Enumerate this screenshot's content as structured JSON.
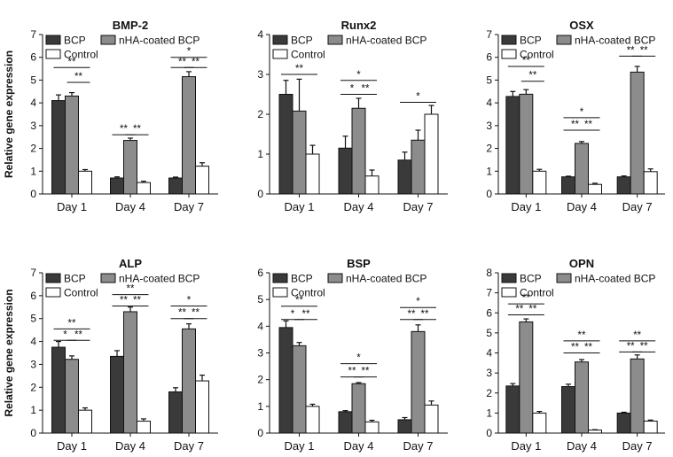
{
  "legend_labels": [
    "BCP",
    "nHA-coated BCP",
    "Control"
  ],
  "series_colors": [
    "#3a3a3a",
    "#8c8c8c",
    "#ffffff"
  ],
  "chart_data": [
    {
      "type": "bar",
      "title": "BMP-2",
      "ylabel": "Relative gene expression",
      "categories": [
        "Day 1",
        "Day 4",
        "Day 7"
      ],
      "ylim": [
        0,
        7
      ],
      "yticks": [
        0,
        1,
        2,
        3,
        4,
        5,
        6,
        7
      ],
      "series": [
        {
          "name": "BCP",
          "values": [
            4.1,
            0.7,
            0.7
          ],
          "errors": [
            0.25,
            0.05,
            0.04
          ]
        },
        {
          "name": "nHA-coated BCP",
          "values": [
            4.3,
            2.35,
            5.15
          ],
          "errors": [
            0.15,
            0.1,
            0.22
          ]
        },
        {
          "name": "Control",
          "values": [
            1.0,
            0.5,
            1.22
          ],
          "errors": [
            0.07,
            0.06,
            0.15
          ]
        }
      ],
      "significance": [
        {
          "group": 0,
          "from": 0,
          "to": 2,
          "y": 5.55,
          "label": "**"
        },
        {
          "group": 0,
          "from": 1,
          "to": 2,
          "y": 4.9,
          "label": "**"
        },
        {
          "group": 1,
          "from": 0,
          "to": 1,
          "y": 2.6,
          "label": "**"
        },
        {
          "group": 1,
          "from": 1,
          "to": 2,
          "y": 2.6,
          "label": "**"
        },
        {
          "group": 2,
          "from": 0,
          "to": 2,
          "y": 6.0,
          "label": "*"
        },
        {
          "group": 2,
          "from": 0,
          "to": 1,
          "y": 5.55,
          "label": "**"
        },
        {
          "group": 2,
          "from": 1,
          "to": 2,
          "y": 5.55,
          "label": "**"
        }
      ]
    },
    {
      "type": "bar",
      "title": "Runx2",
      "ylabel": "",
      "categories": [
        "Day 1",
        "Day 4",
        "Day 7"
      ],
      "ylim": [
        0,
        4
      ],
      "yticks": [
        0,
        1,
        2,
        3,
        4
      ],
      "series": [
        {
          "name": "BCP",
          "values": [
            2.5,
            1.15,
            0.85
          ],
          "errors": [
            0.35,
            0.3,
            0.2
          ]
        },
        {
          "name": "nHA-coated BCP",
          "values": [
            2.08,
            2.15,
            1.35
          ],
          "errors": [
            0.8,
            0.25,
            0.25
          ]
        },
        {
          "name": "Control",
          "values": [
            1.0,
            0.45,
            2.0
          ],
          "errors": [
            0.22,
            0.15,
            0.22
          ]
        }
      ],
      "significance": [
        {
          "group": 0,
          "from": 0,
          "to": 2,
          "y": 3.0,
          "label": "**"
        },
        {
          "group": 1,
          "from": 0,
          "to": 2,
          "y": 2.85,
          "label": "*"
        },
        {
          "group": 1,
          "from": 0,
          "to": 1,
          "y": 2.5,
          "label": "*"
        },
        {
          "group": 1,
          "from": 1,
          "to": 2,
          "y": 2.5,
          "label": "**"
        },
        {
          "group": 2,
          "from": 0,
          "to": 2,
          "y": 2.3,
          "label": "*"
        }
      ]
    },
    {
      "type": "bar",
      "title": "OSX",
      "ylabel": "",
      "categories": [
        "Day 1",
        "Day 4",
        "Day 7"
      ],
      "ylim": [
        0,
        7
      ],
      "yticks": [
        0,
        1,
        2,
        3,
        4,
        5,
        6,
        7
      ],
      "series": [
        {
          "name": "BCP",
          "values": [
            4.28,
            0.75,
            0.75
          ],
          "errors": [
            0.22,
            0.03,
            0.04
          ]
        },
        {
          "name": "nHA-coated BCP",
          "values": [
            4.38,
            2.22,
            5.35
          ],
          "errors": [
            0.2,
            0.08,
            0.25
          ]
        },
        {
          "name": "Control",
          "values": [
            1.0,
            0.42,
            0.98
          ],
          "errors": [
            0.08,
            0.05,
            0.12
          ]
        }
      ],
      "significance": [
        {
          "group": 0,
          "from": 0,
          "to": 2,
          "y": 5.6,
          "label": "**"
        },
        {
          "group": 0,
          "from": 1,
          "to": 2,
          "y": 4.95,
          "label": "**"
        },
        {
          "group": 1,
          "from": 0,
          "to": 2,
          "y": 3.35,
          "label": "*"
        },
        {
          "group": 1,
          "from": 0,
          "to": 1,
          "y": 2.8,
          "label": "**"
        },
        {
          "group": 1,
          "from": 1,
          "to": 2,
          "y": 2.8,
          "label": "**"
        },
        {
          "group": 2,
          "from": 0,
          "to": 1,
          "y": 6.05,
          "label": "**"
        },
        {
          "group": 2,
          "from": 1,
          "to": 2,
          "y": 6.05,
          "label": "**"
        }
      ]
    },
    {
      "type": "bar",
      "title": "ALP",
      "ylabel": "Relative gene expression",
      "categories": [
        "Day 1",
        "Day 4",
        "Day 7"
      ],
      "ylim": [
        0,
        7
      ],
      "yticks": [
        0,
        1,
        2,
        3,
        4,
        5,
        6,
        7
      ],
      "series": [
        {
          "name": "BCP",
          "values": [
            3.75,
            3.35,
            1.8
          ],
          "errors": [
            0.25,
            0.25,
            0.18
          ]
        },
        {
          "name": "nHA-coated BCP",
          "values": [
            3.22,
            5.3,
            4.55
          ],
          "errors": [
            0.15,
            0.2,
            0.22
          ]
        },
        {
          "name": "Control",
          "values": [
            1.0,
            0.52,
            2.28
          ],
          "errors": [
            0.1,
            0.1,
            0.25
          ]
        }
      ],
      "significance": [
        {
          "group": 0,
          "from": 0,
          "to": 2,
          "y": 4.55,
          "label": "**"
        },
        {
          "group": 0,
          "from": 0,
          "to": 1,
          "y": 4.05,
          "label": "*"
        },
        {
          "group": 0,
          "from": 1,
          "to": 2,
          "y": 4.05,
          "label": "**"
        },
        {
          "group": 1,
          "from": 0,
          "to": 2,
          "y": 6.05,
          "label": "**"
        },
        {
          "group": 1,
          "from": 0,
          "to": 1,
          "y": 5.55,
          "label": "**"
        },
        {
          "group": 1,
          "from": 1,
          "to": 2,
          "y": 5.55,
          "label": "**"
        },
        {
          "group": 2,
          "from": 0,
          "to": 2,
          "y": 5.55,
          "label": "*"
        },
        {
          "group": 2,
          "from": 0,
          "to": 1,
          "y": 5.0,
          "label": "**"
        },
        {
          "group": 2,
          "from": 1,
          "to": 2,
          "y": 5.0,
          "label": "**"
        }
      ]
    },
    {
      "type": "bar",
      "title": "BSP",
      "ylabel": "",
      "categories": [
        "Day 1",
        "Day 4",
        "Day 7"
      ],
      "ylim": [
        0,
        6
      ],
      "yticks": [
        0,
        1,
        2,
        3,
        4,
        5,
        6
      ],
      "series": [
        {
          "name": "BCP",
          "values": [
            3.95,
            0.8,
            0.5
          ],
          "errors": [
            0.25,
            0.04,
            0.08
          ]
        },
        {
          "name": "nHA-coated BCP",
          "values": [
            3.27,
            1.85,
            3.8
          ],
          "errors": [
            0.12,
            0.04,
            0.25
          ]
        },
        {
          "name": "Control",
          "values": [
            1.0,
            0.42,
            1.05
          ],
          "errors": [
            0.08,
            0.06,
            0.15
          ]
        }
      ],
      "significance": [
        {
          "group": 0,
          "from": 0,
          "to": 2,
          "y": 4.75,
          "label": "**"
        },
        {
          "group": 0,
          "from": 0,
          "to": 1,
          "y": 4.25,
          "label": "*"
        },
        {
          "group": 0,
          "from": 1,
          "to": 2,
          "y": 4.25,
          "label": "**"
        },
        {
          "group": 1,
          "from": 0,
          "to": 2,
          "y": 2.6,
          "label": "*"
        },
        {
          "group": 1,
          "from": 0,
          "to": 1,
          "y": 2.1,
          "label": "**"
        },
        {
          "group": 1,
          "from": 1,
          "to": 2,
          "y": 2.1,
          "label": "**"
        },
        {
          "group": 2,
          "from": 0,
          "to": 2,
          "y": 4.7,
          "label": "*"
        },
        {
          "group": 2,
          "from": 0,
          "to": 1,
          "y": 4.25,
          "label": "**"
        },
        {
          "group": 2,
          "from": 1,
          "to": 2,
          "y": 4.25,
          "label": "**"
        }
      ]
    },
    {
      "type": "bar",
      "title": "OPN",
      "ylabel": "",
      "categories": [
        "Day 1",
        "Day 4",
        "Day 7"
      ],
      "ylim": [
        0,
        8
      ],
      "yticks": [
        0,
        1,
        2,
        3,
        4,
        5,
        6,
        7,
        8
      ],
      "series": [
        {
          "name": "BCP",
          "values": [
            2.35,
            2.32,
            1.0
          ],
          "errors": [
            0.12,
            0.12,
            0.04
          ]
        },
        {
          "name": "nHA-coated BCP",
          "values": [
            5.55,
            3.55,
            3.7
          ],
          "errors": [
            0.15,
            0.12,
            0.2
          ]
        },
        {
          "name": "Control",
          "values": [
            1.0,
            0.15,
            0.6
          ],
          "errors": [
            0.08,
            0.02,
            0.05
          ]
        }
      ],
      "significance": [
        {
          "group": 0,
          "from": 0,
          "to": 2,
          "y": 6.45,
          "label": "**"
        },
        {
          "group": 0,
          "from": 0,
          "to": 1,
          "y": 5.9,
          "label": "**"
        },
        {
          "group": 0,
          "from": 1,
          "to": 2,
          "y": 5.9,
          "label": "**"
        },
        {
          "group": 1,
          "from": 0,
          "to": 2,
          "y": 4.6,
          "label": "**"
        },
        {
          "group": 1,
          "from": 0,
          "to": 1,
          "y": 4.0,
          "label": "**"
        },
        {
          "group": 1,
          "from": 1,
          "to": 2,
          "y": 4.0,
          "label": "**"
        },
        {
          "group": 2,
          "from": 0,
          "to": 2,
          "y": 4.6,
          "label": "**"
        },
        {
          "group": 2,
          "from": 0,
          "to": 1,
          "y": 4.05,
          "label": "**"
        },
        {
          "group": 2,
          "from": 1,
          "to": 2,
          "y": 4.05,
          "label": "**"
        }
      ]
    }
  ]
}
